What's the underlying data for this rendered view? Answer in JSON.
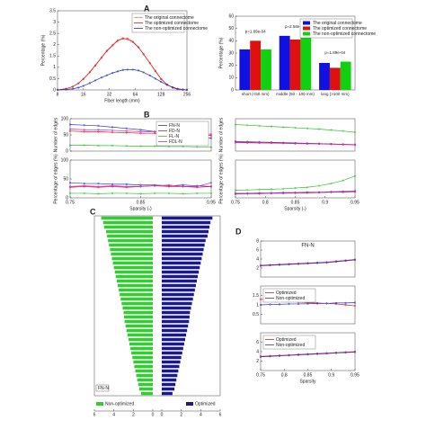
{
  "chart_data": [
    {
      "type": "line",
      "panel_label": "A",
      "xlabel": "Fiber length (mm)",
      "ylabel": "Percentage (%)",
      "log_x": true,
      "legend": "upper right",
      "x": [
        8,
        10,
        12,
        14,
        16,
        19,
        22,
        26,
        30,
        35,
        40,
        46,
        52,
        60,
        70,
        80,
        95,
        110,
        128,
        150,
        175,
        200,
        230,
        256
      ],
      "xlim": [
        8,
        256
      ],
      "xticks": [
        8,
        16,
        32,
        64,
        128,
        256
      ],
      "ylim": [
        0,
        3.5
      ],
      "yticks": [
        0,
        0.5,
        1,
        1.5,
        2,
        2.5,
        3,
        3.5
      ],
      "series": [
        {
          "name": "The original connectome",
          "color": "#f08080",
          "values": [
            0,
            0.05,
            0.15,
            0.3,
            0.5,
            0.8,
            1.1,
            1.45,
            1.75,
            2.0,
            2.2,
            2.3,
            2.28,
            2.15,
            1.9,
            1.6,
            1.2,
            0.85,
            0.5,
            0.25,
            0.1,
            0.03,
            0.01,
            0
          ]
        },
        {
          "name": "The optimized connectome",
          "color": "#d62020",
          "values": [
            0,
            0.05,
            0.14,
            0.29,
            0.48,
            0.78,
            1.08,
            1.42,
            1.72,
            1.97,
            2.17,
            2.27,
            2.25,
            2.12,
            1.88,
            1.58,
            1.18,
            0.83,
            0.48,
            0.24,
            0.1,
            0.03,
            0.01,
            0
          ]
        },
        {
          "name": "The non-optimized connectome",
          "color": "#2030c0",
          "values": [
            0,
            0.02,
            0.05,
            0.1,
            0.18,
            0.3,
            0.42,
            0.55,
            0.65,
            0.75,
            0.82,
            0.88,
            0.9,
            0.9,
            0.86,
            0.78,
            0.64,
            0.5,
            0.36,
            0.22,
            0.12,
            0.05,
            0.02,
            0
          ]
        }
      ]
    },
    {
      "type": "bar",
      "ylabel": "Percentage (%)",
      "legend": "upper right",
      "categories": [
        "short (<50 mm)",
        "middle (50 - 100 mm)",
        "long (>100 mm)"
      ],
      "ylim": [
        0,
        60
      ],
      "yticks": [
        0,
        10,
        20,
        30,
        40,
        50,
        60
      ],
      "annotations": [
        "p=1.89e-04",
        "p=2.58e-07",
        "p=1.89e-04"
      ],
      "series": [
        {
          "name": "The original connectome",
          "color": "#1010e0",
          "values": [
            33,
            44,
            22
          ]
        },
        {
          "name": "The optimized connectome",
          "color": "#e01010",
          "values": [
            40,
            41,
            18
          ]
        },
        {
          "name": "The non-optimized connectome",
          "color": "#10d010",
          "values": [
            33,
            44,
            23
          ]
        }
      ]
    },
    {
      "type": "line",
      "panel_label": "B",
      "ylabel": "Number of edges",
      "legend": "upper right",
      "x": [
        0.75,
        0.77,
        0.79,
        0.81,
        0.83,
        0.85,
        0.87,
        0.89,
        0.91,
        0.93,
        0.95
      ],
      "xlim": [
        0.75,
        0.95
      ],
      "ylim": [
        0,
        100
      ],
      "yticks": [
        0,
        50,
        100
      ],
      "series": [
        {
          "name": "FN-N",
          "color": "#3030d0",
          "values": [
            82,
            80,
            78,
            74,
            70,
            66,
            60,
            55,
            50,
            46,
            40
          ]
        },
        {
          "name": "FD-N",
          "color": "#e02020",
          "values": [
            62,
            60,
            60,
            58,
            57,
            55,
            55,
            53,
            52,
            50,
            48
          ]
        },
        {
          "name": "FL-N",
          "color": "#30c030",
          "values": [
            18,
            18,
            17,
            17,
            16,
            15,
            15,
            14,
            14,
            13,
            12
          ]
        },
        {
          "name": "FDL-N",
          "color": "#c030c0",
          "values": [
            68,
            66,
            66,
            64,
            62,
            60,
            60,
            58,
            56,
            54,
            52
          ]
        }
      ]
    },
    {
      "type": "line",
      "ylabel": "Percentage of edges (%)",
      "xlabel": "Sparsity (-)",
      "x": [
        0.75,
        0.77,
        0.79,
        0.81,
        0.83,
        0.85,
        0.87,
        0.89,
        0.91,
        0.93,
        0.95
      ],
      "xlim": [
        0.75,
        0.95
      ],
      "xticks": [
        0.75,
        0.85,
        0.95
      ],
      "ylim": [
        0,
        100
      ],
      "yticks": [
        0,
        50,
        100
      ],
      "series": [
        {
          "color": "#3030d0",
          "values": [
            40,
            38,
            38,
            36,
            36,
            34,
            34,
            32,
            34,
            32,
            30
          ]
        },
        {
          "color": "#e02020",
          "values": [
            28,
            30,
            28,
            30,
            28,
            30,
            32,
            30,
            30,
            28,
            30
          ]
        },
        {
          "color": "#30c030",
          "values": [
            12,
            12,
            11,
            12,
            12,
            11,
            12,
            12,
            11,
            12,
            12
          ]
        },
        {
          "color": "#c030c0",
          "values": [
            30,
            32,
            30,
            32,
            30,
            30,
            32,
            34,
            30,
            30,
            40
          ]
        }
      ]
    },
    {
      "type": "line",
      "ylabel": "Number of edges",
      "x": [
        0.75,
        0.77,
        0.79,
        0.81,
        0.83,
        0.85,
        0.87,
        0.89,
        0.91,
        0.93,
        0.95
      ],
      "xlim": [
        0.75,
        0.95
      ],
      "ylim": [
        0,
        1000
      ],
      "series": [
        {
          "color": "#30c030",
          "values": [
            820,
            800,
            780,
            760,
            740,
            720,
            700,
            680,
            650,
            620,
            580
          ]
        },
        {
          "color": "#3030d0",
          "values": [
            300,
            290,
            280,
            270,
            260,
            250,
            240,
            230,
            220,
            210,
            200
          ]
        },
        {
          "color": "#e02020",
          "values": [
            280,
            270,
            265,
            260,
            250,
            240,
            235,
            230,
            220,
            210,
            200
          ]
        },
        {
          "color": "#c030c0",
          "values": [
            260,
            255,
            250,
            245,
            240,
            230,
            225,
            220,
            210,
            200,
            190
          ]
        }
      ]
    },
    {
      "type": "line",
      "ylabel": "Percentage of edges (%)",
      "xlabel": "Sparsity (-)",
      "x": [
        0.75,
        0.77,
        0.79,
        0.81,
        0.83,
        0.85,
        0.87,
        0.89,
        0.91,
        0.93,
        0.95
      ],
      "xlim": [
        0.75,
        0.95
      ],
      "xticks": [
        0.75,
        0.8,
        0.85,
        0.9,
        0.95
      ],
      "ylim": [
        0,
        100
      ],
      "series": [
        {
          "color": "#30c030",
          "values": [
            20,
            21,
            22,
            23,
            24,
            26,
            28,
            32,
            38,
            46,
            58
          ]
        },
        {
          "color": "#3030d0",
          "values": [
            12,
            12,
            13,
            13,
            14,
            14,
            15,
            15,
            16,
            17,
            18
          ]
        },
        {
          "color": "#e02020",
          "values": [
            10,
            11,
            11,
            12,
            12,
            13,
            13,
            14,
            15,
            15,
            16
          ]
        },
        {
          "color": "#c030c0",
          "values": [
            11,
            11,
            12,
            12,
            13,
            13,
            14,
            14,
            15,
            16,
            17
          ]
        }
      ]
    },
    {
      "type": "diverging",
      "panel_label": "C",
      "title": "FN-N",
      "categories": [
        null,
        null,
        null,
        null,
        null,
        null,
        null,
        null,
        null,
        null,
        null,
        null,
        null,
        null,
        null,
        null,
        null,
        null,
        null,
        null,
        null,
        null,
        null,
        null,
        null,
        null,
        null,
        null,
        null,
        null,
        null,
        null,
        null,
        null,
        null,
        null,
        null,
        null,
        null,
        null
      ],
      "xlim": [
        0,
        6
      ],
      "xticks": [
        0,
        2,
        4,
        6
      ],
      "series": [
        {
          "name": "Non-optimized",
          "color": "#33cc33",
          "values": [
            5.3,
            5.1,
            5.0,
            4.8,
            4.7,
            4.6,
            4.5,
            4.4,
            4.3,
            4.2,
            4.1,
            4.0,
            3.9,
            3.8,
            3.7,
            3.6,
            3.5,
            3.4,
            3.3,
            3.2,
            3.1,
            3.0,
            2.95,
            2.9,
            2.8,
            2.7,
            2.6,
            2.5,
            2.4,
            2.3,
            2.2,
            2.1,
            2.0,
            1.9,
            1.8,
            1.7,
            1.6,
            1.5,
            1.4,
            1.2
          ]
        },
        {
          "name": "Optimized",
          "color": "#1a1a8c",
          "values": [
            5.2,
            5.0,
            4.9,
            4.8,
            4.7,
            4.5,
            4.4,
            4.3,
            4.2,
            4.1,
            4.0,
            3.9,
            3.8,
            3.7,
            3.6,
            3.5,
            3.4,
            3.3,
            3.2,
            3.1,
            3.0,
            2.9,
            2.85,
            2.8,
            2.7,
            2.6,
            2.5,
            2.4,
            2.3,
            2.2,
            2.1,
            2.0,
            1.9,
            1.8,
            1.7,
            1.6,
            1.5,
            1.4,
            1.3,
            1.1
          ]
        }
      ]
    },
    {
      "type": "line",
      "panel_label": "D",
      "title": "FN-N",
      "x": [
        0.75,
        0.77,
        0.79,
        0.81,
        0.83,
        0.85,
        0.87,
        0.89,
        0.91,
        0.93,
        0.95
      ],
      "xlim": [
        0.75,
        0.95
      ],
      "ylim": [
        0,
        8
      ],
      "yticks": [
        2,
        4,
        6,
        8
      ],
      "series": [
        {
          "color": "#e02020",
          "values": [
            2.6,
            2.7,
            2.8,
            2.9,
            3.0,
            3.1,
            3.2,
            3.3,
            3.5,
            3.7,
            3.9
          ]
        },
        {
          "color": "#3030d0",
          "values": [
            2.5,
            2.6,
            2.7,
            2.8,
            2.9,
            3.0,
            3.1,
            3.2,
            3.4,
            3.6,
            3.8
          ]
        }
      ]
    },
    {
      "type": "line",
      "legend": "upper left",
      "x": [
        0.75,
        0.77,
        0.79,
        0.81,
        0.83,
        0.85,
        0.87,
        0.89,
        0.91,
        0.93,
        0.95
      ],
      "xlim": [
        0.75,
        0.95
      ],
      "ylim": [
        0,
        2
      ],
      "yticks": [
        0.5,
        1,
        1.5
      ],
      "series": [
        {
          "name": "Optimized",
          "color": "#e02020",
          "values": [
            1.3,
            1.25,
            1.2,
            1.18,
            1.15,
            1.12,
            1.1,
            1.08,
            1.05,
            1.0,
            0.95
          ]
        },
        {
          "name": "Non-optimized",
          "color": "#3030d0",
          "values": [
            1.0,
            1.02,
            1.03,
            1.05,
            1.05,
            1.06,
            1.07,
            1.08,
            1.1,
            1.1,
            1.12
          ]
        }
      ]
    },
    {
      "type": "line",
      "legend": "upper left",
      "xlabel": "Sparsity",
      "x": [
        0.75,
        0.77,
        0.79,
        0.81,
        0.83,
        0.85,
        0.87,
        0.89,
        0.91,
        0.93,
        0.95
      ],
      "xlim": [
        0.75,
        0.95
      ],
      "xticks": [
        0.75,
        0.8,
        0.85,
        0.9,
        0.95
      ],
      "ylim": [
        0,
        8
      ],
      "yticks": [
        2,
        4,
        6
      ],
      "series": [
        {
          "name": "Optimized",
          "color": "#e02020",
          "values": [
            3.0,
            3.1,
            3.2,
            3.3,
            3.4,
            3.5,
            3.6,
            3.7,
            3.8,
            3.9,
            4.0
          ]
        },
        {
          "name": "Non-optimized",
          "color": "#3030d0",
          "values": [
            2.9,
            3.0,
            3.1,
            3.2,
            3.3,
            3.4,
            3.5,
            3.6,
            3.7,
            3.8,
            3.9
          ]
        }
      ]
    }
  ]
}
